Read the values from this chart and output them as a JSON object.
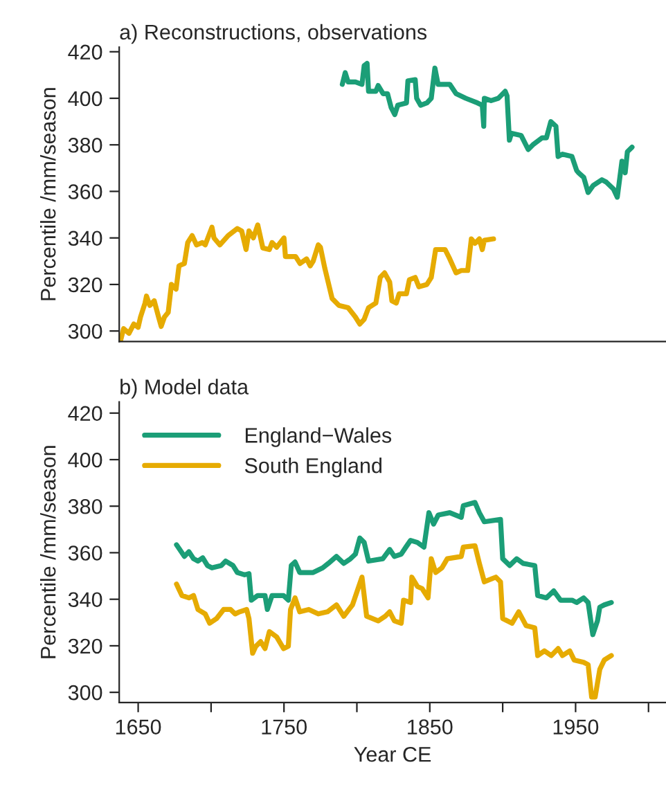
{
  "chart_data": [
    {
      "type": "line",
      "title": "a) Reconstructions, observations",
      "ylabel": "Percentile /mm/season",
      "xlim": [
        1637,
        2012
      ],
      "ylim": [
        295.5,
        422
      ],
      "yticks": [
        300,
        320,
        340,
        360,
        380,
        400,
        420
      ],
      "tick_labels": "y",
      "grid": false,
      "legend": false,
      "line_style": "solid",
      "series": [
        {
          "color": "#1b9e77",
          "x": [
            1790,
            1792,
            1794,
            1799,
            1803.5,
            1805,
            1807,
            1808,
            1813,
            1814.6,
            1818,
            1821,
            1823.5,
            1826,
            1828,
            1834,
            1835,
            1840,
            1841,
            1843.7,
            1848,
            1851,
            1853.5,
            1855.7,
            1863.7,
            1868,
            1874.7,
            1882.7,
            1886,
            1887,
            1887.4,
            1892,
            1897,
            1901.7,
            1903,
            1904.6,
            1906,
            1912.7,
            1917.5,
            1920.7,
            1927,
            1930,
            1933,
            1936.5,
            1938,
            1941,
            1947.5,
            1950.7,
            1952,
            1955.6,
            1958.6,
            1962,
            1968,
            1971,
            1976,
            1978.6,
            1981.8,
            1984,
            1985.5,
            1988.7
          ],
          "values": [
            406,
            411,
            407,
            407,
            406,
            414,
            415,
            403,
            403,
            405.5,
            402,
            402,
            396,
            393,
            397,
            398,
            407.5,
            408,
            400,
            397,
            398,
            400,
            413,
            406,
            406,
            402,
            400,
            398,
            397,
            388,
            400,
            399,
            400,
            403,
            401,
            382,
            385,
            384,
            378,
            380,
            383,
            383,
            390,
            388,
            375,
            376,
            375,
            369,
            368,
            366,
            359.5,
            362.5,
            365,
            364,
            361,
            357.5,
            373,
            368,
            377,
            379
          ]
        },
        {
          "color": "#e6ab02",
          "x": [
            1638,
            1640,
            1643.7,
            1647,
            1650,
            1651.6,
            1654.7,
            1655.7,
            1658,
            1661,
            1664,
            1665.8,
            1668,
            1670.6,
            1672.8,
            1676,
            1678,
            1681.7,
            1684,
            1687,
            1690,
            1694,
            1696,
            1700.6,
            1702,
            1706,
            1711.7,
            1718,
            1721,
            1724,
            1726,
            1729,
            1732,
            1735.5,
            1740,
            1741.8,
            1745,
            1750,
            1751,
            1758,
            1761,
            1765.5,
            1768,
            1770,
            1773.5,
            1775,
            1778,
            1783,
            1787.7,
            1794,
            1799,
            1802,
            1805,
            1808,
            1813,
            1816,
            1819,
            1822.5,
            1824,
            1827,
            1829,
            1834,
            1836,
            1840,
            1842.5,
            1848,
            1851,
            1854,
            1860.5,
            1863.7,
            1868,
            1871.6,
            1876,
            1878.5,
            1881,
            1884,
            1886,
            1887.4,
            1893.7
          ],
          "values": [
            296,
            301,
            299,
            303,
            301.6,
            306,
            312,
            315,
            311,
            313,
            306,
            302,
            306,
            308,
            320,
            318,
            328,
            329,
            338,
            341,
            337,
            338,
            337,
            344.6,
            340,
            337,
            341,
            344,
            343,
            335,
            343,
            340,
            345.6,
            335.7,
            335,
            338,
            336,
            340,
            332,
            332,
            329,
            331,
            328,
            330,
            337,
            336,
            327,
            314,
            311,
            310,
            306,
            303,
            305,
            310,
            312,
            323,
            325,
            321,
            313,
            312,
            316,
            316,
            322,
            323,
            319,
            320,
            323,
            335,
            335,
            331,
            325,
            326,
            326,
            339.6,
            337.7,
            339.6,
            335,
            339,
            339.6
          ]
        }
      ]
    },
    {
      "type": "line",
      "title": "b) Model data",
      "xlabel": "Year CE",
      "ylabel": "Percentile /mm/season",
      "xlim": [
        1637,
        2012
      ],
      "ylim": [
        295.6,
        424.8
      ],
      "xticks": [
        1650,
        {
          "value": 1700,
          "label": null
        },
        1750,
        {
          "value": 1800,
          "label": null
        },
        1850,
        {
          "value": 1900,
          "label": null
        },
        1950,
        {
          "value": 2000,
          "label": null
        }
      ],
      "yticks": [
        300,
        320,
        340,
        360,
        380,
        400,
        420
      ],
      "grid": false,
      "legend": "top left",
      "line_style": "solid",
      "series": [
        {
          "name": "England−Wales",
          "color": "#1b9e77",
          "x": [
            1676.3,
            1678.5,
            1681.7,
            1684.8,
            1688,
            1691,
            1694.3,
            1697.5,
            1700.6,
            1707,
            1710,
            1715,
            1718,
            1723,
            1726,
            1727.6,
            1732,
            1737,
            1738.6,
            1741.8,
            1749.7,
            1753,
            1755,
            1757.6,
            1760.8,
            1770,
            1776.6,
            1780.4,
            1786,
            1791,
            1795.6,
            1799,
            1802,
            1805,
            1808,
            1817.8,
            1822.5,
            1825.7,
            1830.4,
            1833.6,
            1836.8,
            1841.5,
            1846,
            1849.4,
            1852.6,
            1855.8,
            1863.7,
            1871.6,
            1873,
            1881,
            1884,
            1887.4,
            1898.5,
            1900,
            1904.8,
            1909.6,
            1914,
            1922,
            1924,
            1930,
            1935,
            1939.7,
            1947.6,
            1950.7,
            1955.5,
            1958.6,
            1961.8,
            1965,
            1966.6,
            1969.7,
            1974.5
          ],
          "values": [
            363.4,
            361.4,
            358.4,
            360.4,
            357.4,
            356.4,
            357.8,
            354.5,
            353.5,
            354.5,
            356.4,
            354.5,
            351.5,
            350.5,
            351,
            339.6,
            341.6,
            341.6,
            335.6,
            341.6,
            341.6,
            339.6,
            354.5,
            356,
            351.5,
            351.5,
            353.5,
            355.4,
            358.4,
            355.4,
            357.4,
            359.4,
            366.3,
            364.4,
            356.4,
            357.4,
            361.4,
            358.4,
            359.4,
            362.4,
            365.3,
            364.4,
            362.4,
            377.2,
            372.3,
            376.2,
            377.2,
            375.2,
            380.2,
            381.6,
            377.2,
            373.3,
            374.3,
            357.4,
            354.5,
            357.4,
            355.4,
            354.5,
            341.6,
            340.6,
            343.6,
            339.6,
            339.6,
            338.6,
            340.6,
            338.6,
            324.8,
            330.7,
            336.6,
            337.6,
            338.6
          ]
        },
        {
          "name": "South England",
          "color": "#e6ab02",
          "x": [
            1676.3,
            1680,
            1684.8,
            1688,
            1691,
            1696,
            1699,
            1703.8,
            1708.6,
            1713.3,
            1716.5,
            1719.6,
            1724.4,
            1726,
            1728.5,
            1730.7,
            1734,
            1737,
            1740,
            1745,
            1749.7,
            1753,
            1754.5,
            1757.6,
            1760.8,
            1767,
            1773.5,
            1779.8,
            1786,
            1791,
            1797,
            1801.3,
            1803.5,
            1806.7,
            1814.6,
            1819.4,
            1822.5,
            1825.7,
            1830.4,
            1832,
            1836.8,
            1837.7,
            1841.5,
            1844.7,
            1848.8,
            1851,
            1854,
            1858.3,
            1862,
            1871.6,
            1873,
            1881,
            1884,
            1887.4,
            1895.3,
            1898.5,
            1900,
            1906.4,
            1911,
            1916,
            1922,
            1924,
            1928.6,
            1933.3,
            1938,
            1941,
            1946,
            1949,
            1955.5,
            1958.6,
            1961,
            1963.4,
            1966.6,
            1969.7,
            1974.5
          ],
          "values": [
            346.5,
            341.6,
            340.6,
            341.6,
            335.6,
            333.7,
            329.7,
            331.7,
            335.6,
            335.6,
            333.7,
            334.6,
            335.6,
            331.7,
            316.8,
            319.8,
            321.8,
            318.8,
            326.1,
            323.8,
            318.8,
            319.8,
            335.6,
            340.6,
            334.6,
            335.6,
            333.7,
            334.6,
            337.6,
            332.7,
            337.6,
            345.5,
            349.5,
            332.7,
            330.7,
            332.7,
            334.6,
            330.7,
            329.7,
            339.6,
            338.6,
            349.5,
            345.5,
            344.6,
            340.6,
            357.4,
            351.5,
            353.5,
            357.4,
            358.4,
            362.4,
            363,
            355.4,
            347.5,
            349.5,
            347.5,
            331.7,
            329.7,
            334.6,
            328.7,
            327.7,
            315.8,
            317.8,
            315.8,
            318.8,
            315.8,
            317.8,
            313.9,
            312.9,
            311.9,
            298,
            298,
            309.9,
            313.9,
            315.8
          ]
        }
      ]
    }
  ]
}
